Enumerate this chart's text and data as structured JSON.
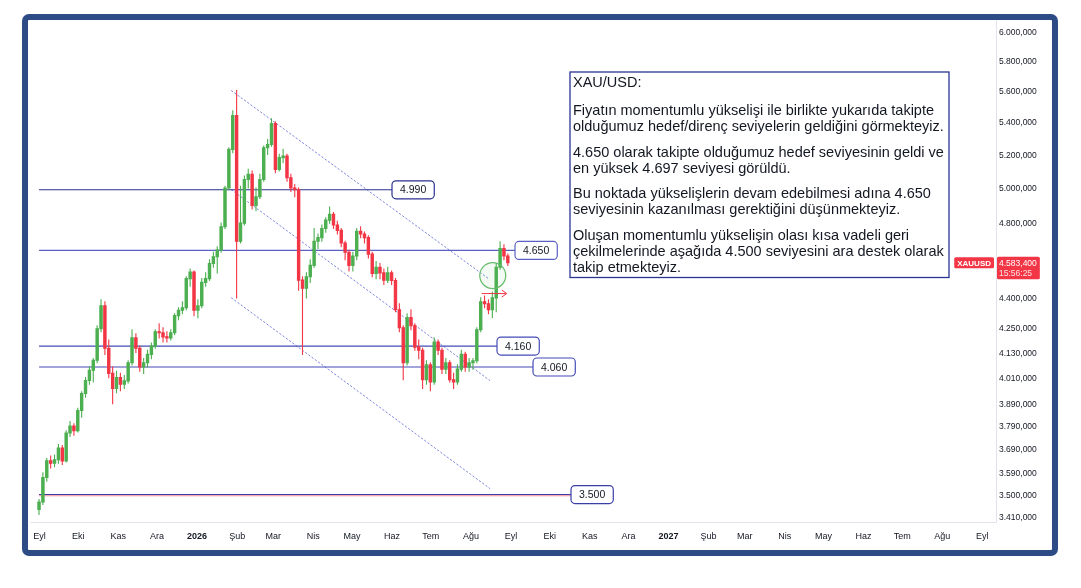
{
  "chart_data": {
    "type": "candlestick",
    "x": [
      "2025-09-01",
      "2025-09-04",
      "2025-09-07",
      "2025-09-10",
      "2025-09-13",
      "2025-09-16",
      "2025-09-19",
      "2025-09-22",
      "2025-09-25",
      "2025-09-28",
      "2025-10-01",
      "2025-10-04",
      "2025-10-07",
      "2025-10-10",
      "2025-10-13",
      "2025-10-16",
      "2025-10-19",
      "2025-10-22",
      "2025-10-25",
      "2025-10-28",
      "2025-10-31",
      "2025-11-03",
      "2025-11-06",
      "2025-11-09",
      "2025-11-12",
      "2025-11-15",
      "2025-11-18",
      "2025-11-21",
      "2025-11-24",
      "2025-11-27",
      "2025-11-30",
      "2025-12-03",
      "2025-12-06",
      "2025-12-09",
      "2025-12-12",
      "2025-12-15",
      "2025-12-18",
      "2025-12-21",
      "2025-12-24",
      "2025-12-27",
      "2025-12-30",
      "2026-01-02",
      "2026-01-05",
      "2026-01-08",
      "2026-01-11",
      "2026-01-14",
      "2026-01-17",
      "2026-01-20",
      "2026-01-23",
      "2026-01-26",
      "2026-01-29",
      "2026-02-01",
      "2026-02-04",
      "2026-02-07",
      "2026-02-10",
      "2026-02-13",
      "2026-02-16",
      "2026-02-19",
      "2026-02-22",
      "2026-02-25",
      "2026-02-28",
      "2026-03-03",
      "2026-03-06",
      "2026-03-09",
      "2026-03-12",
      "2026-03-15",
      "2026-03-18",
      "2026-03-21",
      "2026-03-24",
      "2026-03-27",
      "2026-03-30",
      "2026-04-02",
      "2026-04-05",
      "2026-04-08",
      "2026-04-11",
      "2026-04-14",
      "2026-04-17",
      "2026-04-20",
      "2026-04-23",
      "2026-04-26",
      "2026-04-29",
      "2026-05-02",
      "2026-05-05",
      "2026-05-08",
      "2026-05-11",
      "2026-05-14",
      "2026-05-17",
      "2026-05-20",
      "2026-05-23",
      "2026-05-26",
      "2026-05-29",
      "2026-06-01",
      "2026-06-04",
      "2026-06-07",
      "2026-06-10",
      "2026-06-13",
      "2026-06-16",
      "2026-06-19",
      "2026-06-22",
      "2026-06-25",
      "2026-06-28",
      "2026-07-01",
      "2026-07-04",
      "2026-07-07",
      "2026-07-10",
      "2026-07-13",
      "2026-07-16",
      "2026-07-19",
      "2026-07-22",
      "2026-07-25",
      "2026-07-28",
      "2026-07-31",
      "2026-08-03",
      "2026-08-06",
      "2026-08-09",
      "2026-08-12",
      "2026-08-15",
      "2026-08-18",
      "2026-08-21",
      "2026-08-24",
      "2026-08-27",
      "2026-08-30"
    ],
    "ohlc": [
      [
        3440,
        3480,
        3420,
        3470
      ],
      [
        3470,
        3590,
        3460,
        3570
      ],
      [
        3570,
        3650,
        3555,
        3640
      ],
      [
        3640,
        3660,
        3610,
        3630
      ],
      [
        3630,
        3665,
        3615,
        3645
      ],
      [
        3645,
        3710,
        3630,
        3695
      ],
      [
        3695,
        3705,
        3625,
        3640
      ],
      [
        3640,
        3770,
        3635,
        3760
      ],
      [
        3760,
        3810,
        3745,
        3790
      ],
      [
        3790,
        3800,
        3750,
        3770
      ],
      [
        3770,
        3870,
        3765,
        3860
      ],
      [
        3860,
        3945,
        3830,
        3937
      ],
      [
        3937,
        4010,
        3920,
        3997
      ],
      [
        3997,
        4060,
        3980,
        4045
      ],
      [
        4045,
        4100,
        3990,
        4092
      ],
      [
        4092,
        4260,
        4080,
        4245
      ],
      [
        4245,
        4390,
        4230,
        4360
      ],
      [
        4360,
        4380,
        4120,
        4150
      ],
      [
        4150,
        4190,
        4010,
        4030
      ],
      [
        4030,
        4060,
        3890,
        3960
      ],
      [
        3960,
        4040,
        3940,
        4010
      ],
      [
        4010,
        4030,
        3950,
        3980
      ],
      [
        3980,
        4020,
        3960,
        3995
      ],
      [
        3995,
        4090,
        3985,
        4080
      ],
      [
        4080,
        4240,
        4070,
        4200
      ],
      [
        4200,
        4220,
        4130,
        4150
      ],
      [
        4150,
        4160,
        4040,
        4060
      ],
      [
        4060,
        4100,
        4030,
        4080
      ],
      [
        4080,
        4140,
        4060,
        4120
      ],
      [
        4120,
        4175,
        4100,
        4160
      ],
      [
        4160,
        4240,
        4150,
        4230
      ],
      [
        4230,
        4270,
        4200,
        4225
      ],
      [
        4225,
        4250,
        4180,
        4205
      ],
      [
        4205,
        4230,
        4180,
        4200
      ],
      [
        4200,
        4240,
        4190,
        4225
      ],
      [
        4225,
        4320,
        4215,
        4310
      ],
      [
        4310,
        4350,
        4290,
        4337
      ],
      [
        4337,
        4380,
        4320,
        4350
      ],
      [
        4350,
        4510,
        4340,
        4500
      ],
      [
        4500,
        4550,
        4460,
        4534
      ],
      [
        4534,
        4540,
        4310,
        4337
      ],
      [
        4337,
        4390,
        4300,
        4360
      ],
      [
        4360,
        4500,
        4350,
        4480
      ],
      [
        4480,
        4530,
        4460,
        4500
      ],
      [
        4500,
        4600,
        4490,
        4580
      ],
      [
        4580,
        4640,
        4560,
        4616
      ],
      [
        4616,
        4670,
        4530,
        4652
      ],
      [
        4652,
        4800,
        4640,
        4780
      ],
      [
        4780,
        5010,
        4770,
        5000
      ],
      [
        5000,
        5240,
        4990,
        5230
      ],
      [
        5230,
        5470,
        5210,
        5440
      ],
      [
        5440,
        5600,
        4400,
        4700
      ],
      [
        4700,
        5010,
        4690,
        4800
      ],
      [
        4800,
        5070,
        4790,
        5050
      ],
      [
        5050,
        5110,
        5000,
        5080
      ],
      [
        5080,
        5100,
        4880,
        4900
      ],
      [
        4900,
        5000,
        4870,
        4950
      ],
      [
        4950,
        5080,
        4940,
        5050
      ],
      [
        5050,
        5250,
        5040,
        5240
      ],
      [
        5240,
        5290,
        5200,
        5260
      ],
      [
        5260,
        5420,
        5250,
        5390
      ],
      [
        5390,
        5400,
        5090,
        5110
      ],
      [
        5110,
        5200,
        5100,
        5180
      ],
      [
        5180,
        5230,
        5150,
        5190
      ],
      [
        5190,
        5200,
        5040,
        5060
      ],
      [
        5060,
        5080,
        4980,
        5000
      ],
      [
        5000,
        5020,
        4950,
        4990
      ],
      [
        4990,
        5000,
        4440,
        4492
      ],
      [
        4492,
        4510,
        4120,
        4450
      ],
      [
        4450,
        4530,
        4400,
        4510
      ],
      [
        4510,
        4600,
        4480,
        4570
      ],
      [
        4570,
        4770,
        4560,
        4700
      ],
      [
        4700,
        4740,
        4660,
        4720
      ],
      [
        4720,
        4790,
        4700,
        4770
      ],
      [
        4770,
        4830,
        4750,
        4817
      ],
      [
        4817,
        4890,
        4800,
        4850
      ],
      [
        4850,
        4860,
        4770,
        4790
      ],
      [
        4790,
        4810,
        4740,
        4760
      ],
      [
        4760,
        4770,
        4670,
        4690
      ],
      [
        4690,
        4700,
        4600,
        4640
      ],
      [
        4640,
        4650,
        4540,
        4570
      ],
      [
        4570,
        4640,
        4540,
        4620
      ],
      [
        4620,
        4770,
        4600,
        4755
      ],
      [
        4755,
        4780,
        4720,
        4740
      ],
      [
        4740,
        4750,
        4690,
        4720
      ],
      [
        4720,
        4730,
        4610,
        4630
      ],
      [
        4630,
        4640,
        4510,
        4527
      ],
      [
        4527,
        4590,
        4500,
        4560
      ],
      [
        4560,
        4580,
        4500,
        4530
      ],
      [
        4530,
        4550,
        4470,
        4492
      ],
      [
        4492,
        4560,
        4480,
        4530
      ],
      [
        4530,
        4540,
        4470,
        4490
      ],
      [
        4490,
        4500,
        4330,
        4340
      ],
      [
        4340,
        4370,
        4230,
        4250
      ],
      [
        4250,
        4260,
        4000,
        4080
      ],
      [
        4080,
        4320,
        4070,
        4300
      ],
      [
        4300,
        4340,
        4240,
        4260
      ],
      [
        4260,
        4270,
        4140,
        4155
      ],
      [
        4155,
        4190,
        4100,
        4140
      ],
      [
        4140,
        4150,
        3960,
        4000
      ],
      [
        4000,
        4090,
        3980,
        4070
      ],
      [
        4070,
        4080,
        3950,
        3990
      ],
      [
        3990,
        4200,
        3980,
        4180
      ],
      [
        4180,
        4190,
        4120,
        4140
      ],
      [
        4140,
        4150,
        4030,
        4050
      ],
      [
        4050,
        4100,
        4030,
        4080
      ],
      [
        4080,
        4090,
        3990,
        4000
      ],
      [
        4000,
        4030,
        3960,
        3990
      ],
      [
        3990,
        4070,
        3980,
        4050
      ],
      [
        4050,
        4140,
        4040,
        4120
      ],
      [
        4120,
        4130,
        4040,
        4060
      ],
      [
        4060,
        4100,
        4040,
        4080
      ],
      [
        4080,
        4100,
        4050,
        4090
      ],
      [
        4090,
        4250,
        4080,
        4240
      ],
      [
        4240,
        4400,
        4230,
        4380
      ],
      [
        4380,
        4410,
        4350,
        4370
      ],
      [
        4370,
        4390,
        4320,
        4340
      ],
      [
        4340,
        4430,
        4300,
        4400
      ],
      [
        4400,
        4580,
        4330,
        4560
      ],
      [
        4560,
        4697,
        4550,
        4660
      ],
      [
        4660,
        4680,
        4600,
        4620
      ],
      [
        4620,
        4630,
        4570,
        4583.4
      ]
    ],
    "series": [
      {
        "type": "line",
        "x": [
          "2026-01-28",
          "2026-08-16"
        ],
        "values": [
          5600,
          4495
        ],
        "color": "#8088e0",
        "line_style": "dotted"
      },
      {
        "type": "line",
        "x": [
          "2026-01-28",
          "2026-08-16"
        ],
        "values": [
          4990,
          3997
        ],
        "color": "#8088e0",
        "line_style": "dotted"
      },
      {
        "type": "line",
        "x": [
          "2026-01-28",
          "2026-08-16"
        ],
        "values": [
          4400,
          3525
        ],
        "color": "#8088e0",
        "line_style": "dotted"
      }
    ],
    "xlim": [
      "2025-08-25",
      "2027-09-12"
    ],
    "xticks": [
      {
        "value": "2025-09-01",
        "label": "Eyl"
      },
      {
        "value": "2025-10-01",
        "label": "Eki"
      },
      {
        "value": "2025-11-01",
        "label": "Kas"
      },
      {
        "value": "2025-12-01",
        "label": "Ara"
      },
      {
        "value": "2026-01-01",
        "label": "2026"
      },
      {
        "value": "2026-02-01",
        "label": "Şub"
      },
      {
        "value": "2026-03-01",
        "label": "Mar"
      },
      {
        "value": "2026-04-01",
        "label": "Nis"
      },
      {
        "value": "2026-05-01",
        "label": "May"
      },
      {
        "value": "2026-06-01",
        "label": "Haz"
      },
      {
        "value": "2026-07-01",
        "label": "Tem"
      },
      {
        "value": "2026-08-01",
        "label": "Ağu"
      },
      {
        "value": "2026-09-01",
        "label": "Eyl"
      },
      {
        "value": "2026-10-01",
        "label": "Eki"
      },
      {
        "value": "2026-11-01",
        "label": "Kas"
      },
      {
        "value": "2026-12-01",
        "label": "Ara"
      },
      {
        "value": "2027-01-01",
        "label": "2027"
      },
      {
        "value": "2027-02-01",
        "label": "Şub"
      },
      {
        "value": "2027-03-01",
        "label": "Mar"
      },
      {
        "value": "2027-04-01",
        "label": "Nis"
      },
      {
        "value": "2027-05-01",
        "label": "May"
      },
      {
        "value": "2027-06-01",
        "label": "Haz"
      },
      {
        "value": "2027-07-01",
        "label": "Tem"
      },
      {
        "value": "2027-08-01",
        "label": "Ağu"
      },
      {
        "value": "2027-09-01",
        "label": "Eyl"
      }
    ],
    "ylim": [
      3390,
      6080
    ],
    "yticks": [
      {
        "value": 6000,
        "label": "6.000,000"
      },
      {
        "value": 5800,
        "label": "5.800,000"
      },
      {
        "value": 5600,
        "label": "5.600,000"
      },
      {
        "value": 5400,
        "label": "5.400,000"
      },
      {
        "value": 5200,
        "label": "5.200,000"
      },
      {
        "value": 5000,
        "label": "5.000,000"
      },
      {
        "value": 4800,
        "label": "4.800,000"
      },
      {
        "value": 4400,
        "label": "4.400,000"
      },
      {
        "value": 4250,
        "label": "4.250,000"
      },
      {
        "value": 4130,
        "label": "4.130,000"
      },
      {
        "value": 4010,
        "label": "4.010,000"
      },
      {
        "value": 3890,
        "label": "3.890,000"
      },
      {
        "value": 3790,
        "label": "3.790,000"
      },
      {
        "value": 3690,
        "label": "3.690,000"
      },
      {
        "value": 3590,
        "label": "3.590,000"
      },
      {
        "value": 3500,
        "label": "3.500,000"
      },
      {
        "value": 3410,
        "label": "3.410,000"
      }
    ],
    "log": true,
    "ref_lines": [
      {
        "axis": "y",
        "value": 4990,
        "label": "4.990",
        "color": "#2b3190"
      },
      {
        "axis": "y",
        "value": 4650,
        "label": "4.650",
        "color": "#5a60c2"
      },
      {
        "axis": "y",
        "value": 4160,
        "label": "4.160",
        "color": "#454bb5"
      },
      {
        "axis": "y",
        "value": 4060,
        "label": "4.060",
        "color": "#454bb5"
      },
      {
        "axis": "y",
        "value": 3495,
        "color": "#f28b94"
      },
      {
        "axis": "y",
        "value": 3500,
        "label": "3.500",
        "color": "#3a3fa8"
      }
    ],
    "annotations": [
      "XAU/USD:",
      "Fiyatın momentumlu yükselişi ile birlikte yukarıda takipte olduğumuz hedef/direnç seviyelerin geldiğini görmekteyiz.",
      "4.650 olarak takipte olduğumuz hedef seviyesinin geldi ve en yüksek 4.697 seviyesi görüldü.",
      "Bu noktada yükselişlerin devam edebilmesi adına 4.650 seviyesinin kazanılması gerektiğini düşünmekteyiz.",
      "Oluşan momentumlu yükselişin olası kısa vadeli geri çekilmelerinde aşağıda 4.500 seviyesini ara destek olarak takip etmekteyiz.",
      "XAUUSD",
      "4.583,400",
      "15:56:25"
    ]
  }
}
